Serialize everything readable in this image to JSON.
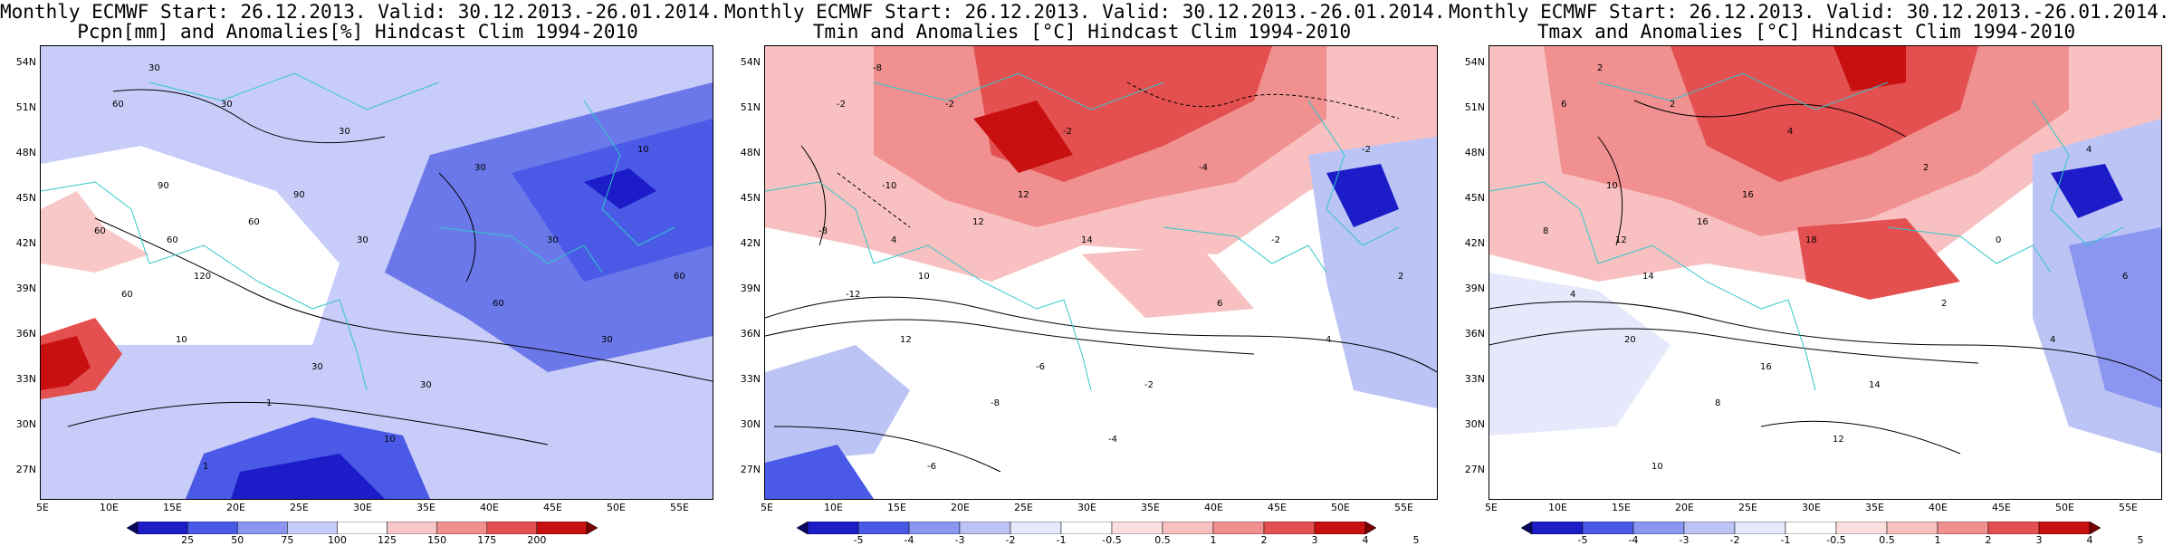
{
  "panels": [
    {
      "id": "pcpn",
      "title_line1": "Monthly ECMWF Start: 26.12.2013. Valid: 30.12.2013.-26.01.2014.",
      "title_line2": "Pcpn[mm] and Anomalies[%] Hindcast Clim 1994-2010",
      "colorbar": {
        "colors": [
          "#08085e",
          "#1c1cc8",
          "#4a5ae6",
          "#8a96f0",
          "#c8ccf8",
          "#ffffff",
          "#f8c8c8",
          "#f09090",
          "#e45050",
          "#c81010",
          "#780000"
        ],
        "labels": [
          "25",
          "50",
          "75",
          "100",
          "125",
          "150",
          "175",
          "200"
        ],
        "label_positions": [
          1,
          2,
          3,
          4,
          5,
          6,
          7,
          8
        ]
      },
      "contour_labels": [
        "30",
        "30",
        "30",
        "30",
        "30",
        "10",
        "60",
        "60",
        "60",
        "90",
        "60",
        "120",
        "60",
        "90",
        "30",
        "10",
        "30",
        "30",
        "10",
        "1",
        "1",
        "60",
        "30",
        "60"
      ]
    },
    {
      "id": "tmin",
      "title_line1": "Monthly ECMWF Start: 26.12.2013. Valid: 30.12.2013.-26.01.2014.",
      "title_line2": "Tmin and Anomalies [°C] Hindcast Clim 1994-2010",
      "colorbar": {
        "colors": [
          "#08085e",
          "#1c1cc8",
          "#4a5ae6",
          "#8a96f0",
          "#bcc4f6",
          "#e6e8fc",
          "#ffffff",
          "#fce0e0",
          "#f8c0c0",
          "#f09090",
          "#e45050",
          "#c81010",
          "#780000"
        ],
        "labels": [
          "-5",
          "-4",
          "-3",
          "-2",
          "-1",
          "-0.5",
          "0.5",
          "1",
          "2",
          "3",
          "4",
          "5"
        ],
        "label_positions": [
          1,
          2,
          3,
          4,
          5,
          6,
          7,
          8,
          9,
          10,
          11,
          12
        ]
      },
      "contour_labels": [
        "-8",
        "-2",
        "-2",
        "-4",
        "-2",
        "-2",
        "-2",
        "-8",
        "-12",
        "-10",
        "4",
        "10",
        "12",
        "12",
        "14",
        "12",
        "-2",
        "-6",
        "-4",
        "-6",
        "-8",
        "2",
        "4",
        "6"
      ]
    },
    {
      "id": "tmax",
      "title_line1": "Monthly ECMWF Start: 26.12.2013. Valid: 30.12.2013.-26.01.2014.",
      "title_line2": "Tmax and Anomalies [°C] Hindcast Clim 1994-2010",
      "colorbar": {
        "colors": [
          "#08085e",
          "#1c1cc8",
          "#4a5ae6",
          "#8a96f0",
          "#bcc4f6",
          "#e6e8fc",
          "#ffffff",
          "#fce0e0",
          "#f8c0c0",
          "#f09090",
          "#e45050",
          "#c81010",
          "#780000"
        ],
        "labels": [
          "-5",
          "-4",
          "-3",
          "-2",
          "-1",
          "-0.5",
          "0.5",
          "1",
          "2",
          "3",
          "4",
          "5"
        ],
        "label_positions": [
          1,
          2,
          3,
          4,
          5,
          6,
          7,
          8,
          9,
          10,
          11,
          12
        ]
      },
      "contour_labels": [
        "2",
        "2",
        "4",
        "2",
        "0",
        "4",
        "6",
        "8",
        "4",
        "10",
        "12",
        "14",
        "16",
        "16",
        "18",
        "20",
        "14",
        "16",
        "12",
        "10",
        "8",
        "6",
        "4",
        "2"
      ]
    }
  ],
  "axes": {
    "lon_labels": [
      "5E",
      "10E",
      "15E",
      "20E",
      "25E",
      "30E",
      "35E",
      "40E",
      "45E",
      "50E",
      "55E"
    ],
    "lat_labels": [
      "54N",
      "51N",
      "48N",
      "45N",
      "42N",
      "39N",
      "36N",
      "33N",
      "30N",
      "27N"
    ]
  }
}
